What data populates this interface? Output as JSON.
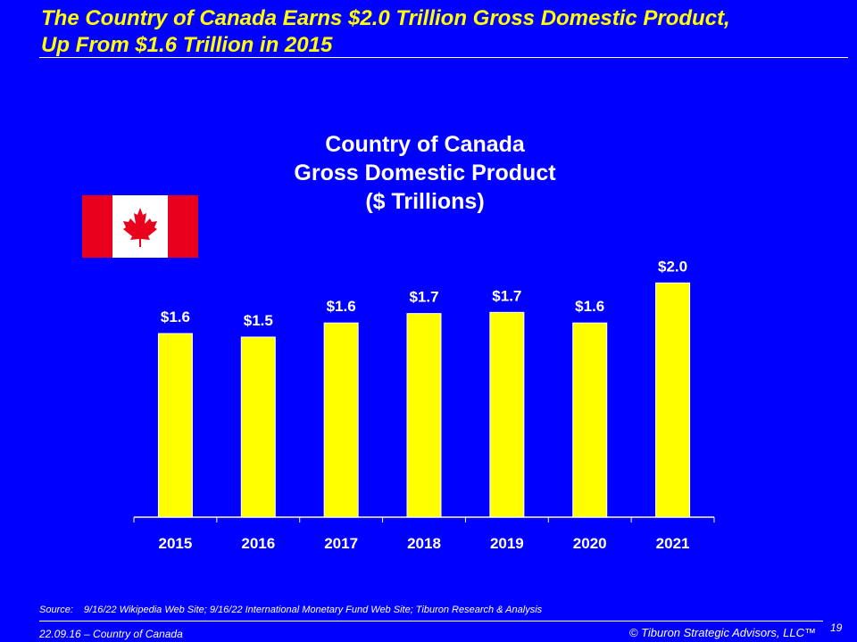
{
  "slide": {
    "title_line1": "The Country of Canada Earns $2.0 Trillion Gross Domestic Product,",
    "title_line2": "Up From $1.6 Trillion in 2015",
    "source_label": "Source:",
    "source_text": "9/16/22 Wikipedia Web Site; 9/16/22 International Monetary Fund Web Site; Tiburon Research & Analysis",
    "footer_left": "22.09.16 – Country of Canada",
    "footer_right": "© Tiburon Strategic Advisors, LLC™",
    "page_number": "19"
  },
  "chart_data": {
    "type": "bar",
    "title_lines": [
      "Country of Canada",
      "Gross Domestic Product",
      "($ Trillions)"
    ],
    "categories": [
      "2015",
      "2016",
      "2017",
      "2018",
      "2019",
      "2020",
      "2021"
    ],
    "values": [
      1.56,
      1.53,
      1.65,
      1.73,
      1.74,
      1.65,
      1.99
    ],
    "data_labels": [
      "$1.6",
      "$1.5",
      "$1.6",
      "$1.7",
      "$1.7",
      "$1.6",
      "$2.0"
    ],
    "xlabel": "",
    "ylabel": "",
    "ylim": [
      0,
      2.0
    ],
    "grid": false,
    "bar_color": "#FFFF00",
    "background": "#0000FF"
  }
}
